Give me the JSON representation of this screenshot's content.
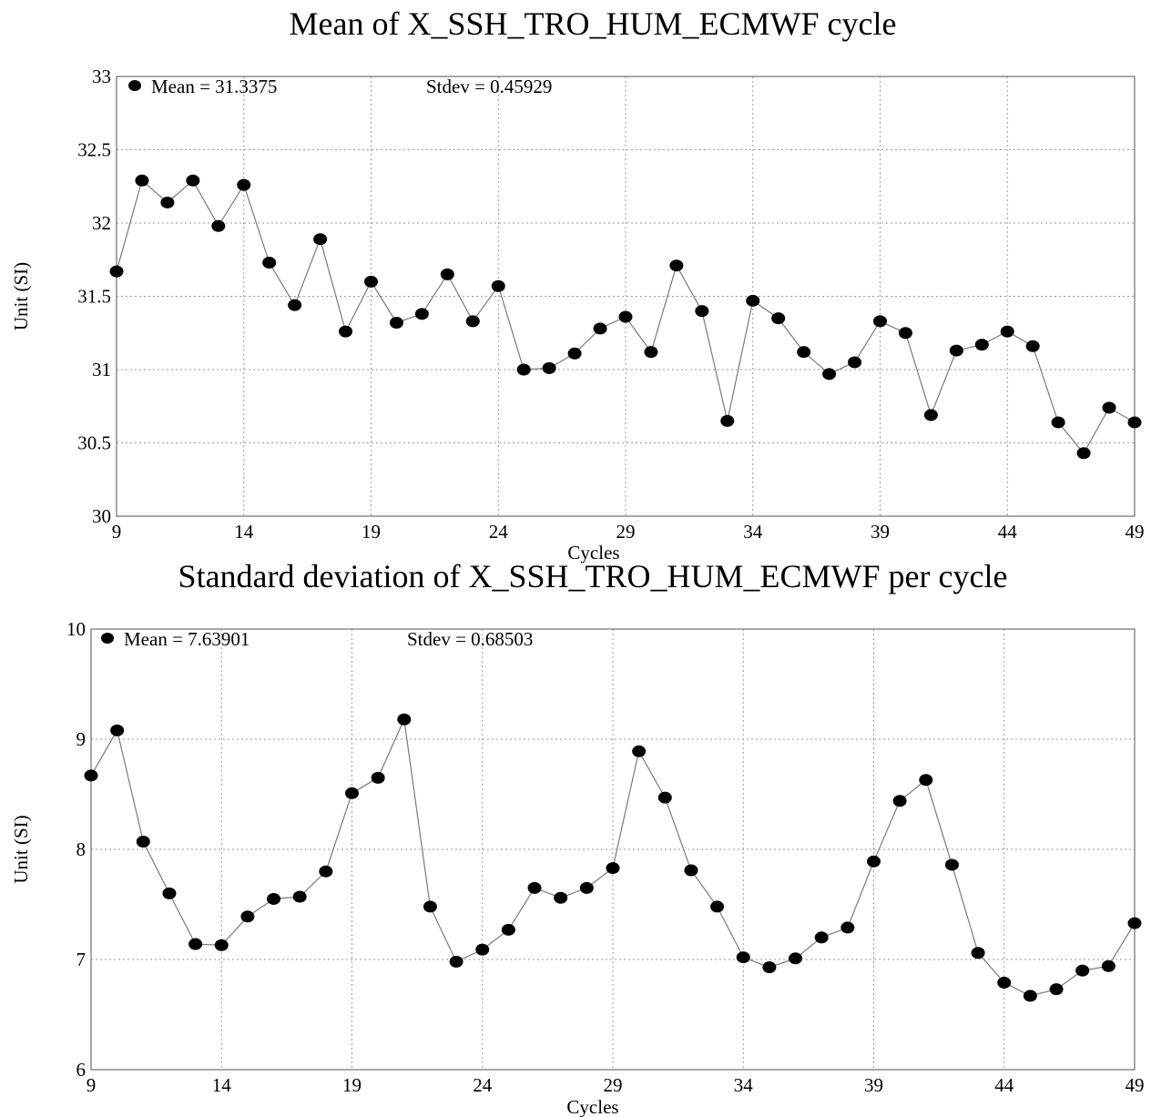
{
  "chart_data": [
    {
      "type": "line",
      "title": "Mean of X_SSH_TRO_HUM_ECMWF cycle",
      "xlabel": "Cycles",
      "ylabel": "Unit (SI)",
      "xlim": [
        9,
        49
      ],
      "ylim": [
        30,
        33
      ],
      "xticks": [
        9,
        14,
        19,
        24,
        29,
        34,
        39,
        44,
        49
      ],
      "yticks": [
        30,
        30.5,
        31,
        31.5,
        32,
        32.5,
        33
      ],
      "ytick_labels": [
        "30",
        "30.5",
        "31",
        "31.5",
        "32",
        "32.5",
        "33"
      ],
      "grid": true,
      "legend_position": "top-left",
      "legend_mean": "Mean = 31.3375",
      "legend_stdev": "Stdev = 0.45929",
      "series": [
        {
          "x": [
            9,
            10,
            11,
            12,
            13,
            14,
            15,
            16,
            17,
            18,
            19,
            20,
            21,
            22,
            23,
            24,
            25,
            26,
            27,
            28,
            29,
            30,
            31,
            32,
            33,
            34,
            35,
            36,
            37,
            38,
            39,
            40,
            41,
            42,
            43,
            44,
            45,
            46,
            47,
            48,
            49
          ],
          "values": [
            31.67,
            32.29,
            32.14,
            32.29,
            31.98,
            32.26,
            31.73,
            31.44,
            31.89,
            31.26,
            31.6,
            31.32,
            31.38,
            31.65,
            31.33,
            31.57,
            31.0,
            31.01,
            31.11,
            31.28,
            31.36,
            31.12,
            31.71,
            31.4,
            30.65,
            31.47,
            31.35,
            31.12,
            30.97,
            31.05,
            31.33,
            31.25,
            30.69,
            31.13,
            31.17,
            31.26,
            31.16,
            30.64,
            30.43,
            30.74,
            30.64
          ]
        }
      ]
    },
    {
      "type": "line",
      "title": "Standard deviation of X_SSH_TRO_HUM_ECMWF per cycle",
      "xlabel": "Cycles",
      "ylabel": "Unit (SI)",
      "xlim": [
        9,
        49
      ],
      "ylim": [
        6,
        10
      ],
      "xticks": [
        9,
        14,
        19,
        24,
        29,
        34,
        39,
        44,
        49
      ],
      "yticks": [
        6,
        7,
        8,
        9,
        10
      ],
      "ytick_labels": [
        "6",
        "7",
        "8",
        "9",
        "10"
      ],
      "grid": true,
      "legend_position": "top-left",
      "legend_mean": "Mean = 7.63901",
      "legend_stdev": "Stdev = 0.68503",
      "series": [
        {
          "x": [
            9,
            10,
            11,
            12,
            13,
            14,
            15,
            16,
            17,
            18,
            19,
            20,
            21,
            22,
            23,
            24,
            25,
            26,
            27,
            28,
            29,
            30,
            31,
            32,
            33,
            34,
            35,
            36,
            37,
            38,
            39,
            40,
            41,
            42,
            43,
            44,
            45,
            46,
            47,
            48,
            49
          ],
          "values": [
            8.67,
            9.08,
            8.07,
            7.6,
            7.14,
            7.13,
            7.39,
            7.55,
            7.57,
            7.8,
            8.51,
            8.65,
            9.18,
            7.48,
            6.98,
            7.09,
            7.27,
            7.65,
            7.56,
            7.65,
            7.83,
            8.89,
            8.47,
            7.81,
            7.48,
            7.02,
            6.93,
            7.01,
            7.2,
            7.29,
            7.89,
            8.44,
            8.63,
            7.86,
            7.06,
            6.79,
            6.67,
            6.73,
            6.9,
            6.94,
            7.33
          ]
        }
      ]
    }
  ]
}
